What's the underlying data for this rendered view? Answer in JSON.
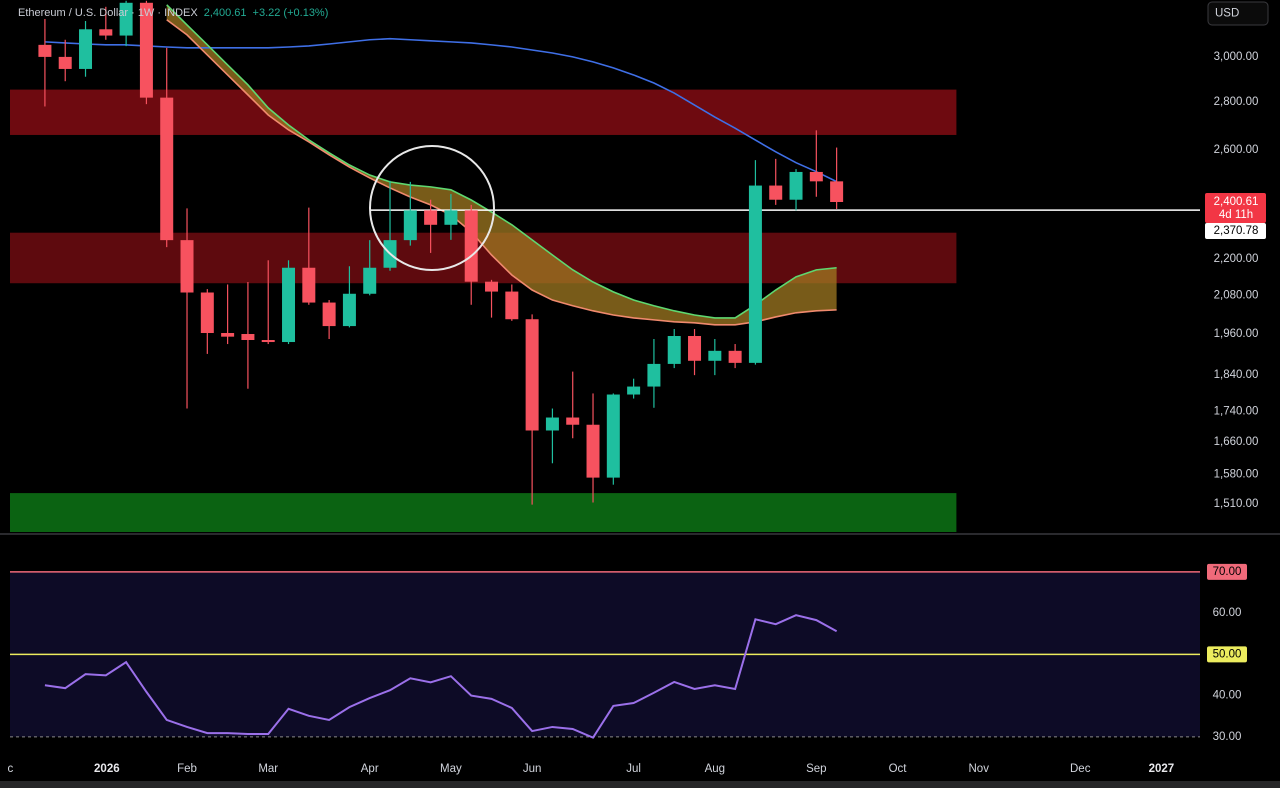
{
  "header": {
    "title": "Ethereum / U.S. Dollar · 1W · INDEX",
    "price": "2,400.61",
    "change": "+3.22 (+0.13%)",
    "currency": "USD"
  },
  "chart_data": [
    {
      "type": "candlestick",
      "log": true,
      "xlim": [
        -1.72,
        56.9
      ],
      "ylim": [
        1446,
        3274
      ],
      "yticks": [
        {
          "value": 3000,
          "label": "3,000.00"
        },
        {
          "value": 2800,
          "label": "2,800.00"
        },
        {
          "value": 2600,
          "label": "2,600.00"
        },
        {
          "value": 2200,
          "label": "2,200.00"
        },
        {
          "value": 2080,
          "label": "2,080.00"
        },
        {
          "value": 1960,
          "label": "1,960.00"
        },
        {
          "value": 1840,
          "label": "1,840.00"
        },
        {
          "value": 1740,
          "label": "1,740.00"
        },
        {
          "value": 1660,
          "label": "1,660.00"
        },
        {
          "value": 1580,
          "label": "1,580.00"
        },
        {
          "value": 1510,
          "label": "1,510.00"
        }
      ],
      "xticks": [
        {
          "value": -1.7,
          "label": "c"
        },
        {
          "value": 3.05,
          "label": "2026"
        },
        {
          "value": 7,
          "label": "Feb"
        },
        {
          "value": 11,
          "label": "Mar"
        },
        {
          "value": 16,
          "label": "Apr"
        },
        {
          "value": 20,
          "label": "May"
        },
        {
          "value": 24,
          "label": "Jun"
        },
        {
          "value": 29,
          "label": "Jul"
        },
        {
          "value": 33,
          "label": "Aug"
        },
        {
          "value": 38,
          "label": "Sep"
        },
        {
          "value": 42,
          "label": "Oct"
        },
        {
          "value": 46,
          "label": "Nov"
        },
        {
          "value": 51,
          "label": "Dec"
        },
        {
          "value": 55,
          "label": "2027"
        }
      ],
      "up_color": "#1fbf9f",
      "down_color": "#f7525f",
      "candles": {
        "open": [
          3056,
          3000,
          2945,
          3130,
          3100,
          3260,
          2818,
          2264,
          2089,
          1963,
          1960,
          1942,
          1936,
          2170,
          2057,
          1984,
          2085,
          2170,
          2264,
          2370,
          2318,
          2370,
          2124,
          2092,
          2005,
          1690,
          1724,
          1705,
          1572,
          1786,
          1808,
          1872,
          1954,
          1881,
          1910,
          1875,
          2462,
          2409,
          2514,
          2478
        ],
        "high": [
          3180,
          3080,
          3170,
          3240,
          3270,
          3270,
          3042,
          2377,
          2100,
          2115,
          2123,
          2195,
          2195,
          2380,
          2065,
          2175,
          2264,
          2480,
          2476,
          2409,
          2430,
          2390,
          2130,
          2115,
          2020,
          1748,
          1850,
          1789,
          1789,
          1830,
          1945,
          1975,
          1975,
          1945,
          1930,
          2560,
          2565,
          2525,
          2680,
          2610
        ],
        "low": [
          2780,
          2890,
          2910,
          3080,
          3050,
          2790,
          2240,
          1748,
          1901,
          1930,
          1802,
          1930,
          1930,
          2050,
          1945,
          1980,
          2080,
          2160,
          2245,
          2220,
          2265,
          2050,
          2010,
          2000,
          1508,
          1607,
          1670,
          1513,
          1555,
          1775,
          1750,
          1860,
          1840,
          1840,
          1860,
          1870,
          2390,
          2370,
          2420,
          2375
        ],
        "close": [
          3000,
          2945,
          3130,
          3100,
          3260,
          2818,
          2264,
          2089,
          1963,
          1952,
          1942,
          1936,
          2170,
          2057,
          1984,
          2085,
          2170,
          2264,
          2370,
          2318,
          2370,
          2124,
          2092,
          2005,
          1690,
          1724,
          1705,
          1572,
          1786,
          1808,
          1872,
          1954,
          1881,
          1910,
          1875,
          2462,
          2409,
          2514,
          2478,
          2400.61
        ]
      },
      "lines": [
        {
          "color": "#3f6fe6",
          "values": [
            3070,
            3065,
            3060,
            3056,
            3056,
            3051,
            3046,
            3042,
            3042,
            3042,
            3042,
            3042,
            3046,
            3051,
            3060,
            3070,
            3080,
            3085,
            3080,
            3075,
            3070,
            3065,
            3056,
            3046,
            3032,
            3018,
            3000,
            2977,
            2950,
            2918,
            2882,
            2838,
            2786,
            2735,
            2689,
            2640,
            2593,
            2550,
            2515,
            2477
          ]
        },
        {
          "color": "#5fd870",
          "values": [
            null,
            null,
            null,
            null,
            null,
            null,
            3250,
            3151,
            3056,
            2963,
            2874,
            2774,
            2702,
            2641,
            2589,
            2541,
            2502,
            2476,
            2464,
            2457,
            2446,
            2408,
            2364,
            2318,
            2265,
            2213,
            2163,
            2123,
            2091,
            2065,
            2047,
            2031,
            2018,
            2009,
            2009,
            2050,
            2097,
            2140,
            2163,
            2170
          ]
        },
        {
          "color": "#f08a6e",
          "values": [
            null,
            null,
            null,
            null,
            null,
            null,
            3176,
            3103,
            3009,
            2918,
            2830,
            2744,
            2682,
            2633,
            2581,
            2533,
            2491,
            2453,
            2419,
            2390,
            2353,
            2293,
            2213,
            2146,
            2097,
            2065,
            2047,
            2031,
            2018,
            2009,
            2003,
            1997,
            1994,
            1988,
            1988,
            1997,
            2012,
            2025,
            2031,
            2034
          ]
        }
      ],
      "ema_band_color": "#a07a22",
      "zones": [
        {
          "from": 2661,
          "to": 2853,
          "color": "#6e0a10"
        },
        {
          "from": 2119,
          "to": 2290,
          "color": "#5e0a0e"
        },
        {
          "from": 1446,
          "to": 1535,
          "color": "#0b6312"
        }
      ],
      "price_line": {
        "value": 2370.78,
        "label": "2,370.78"
      },
      "last_price": {
        "value": 2400.61,
        "label": "2,400.61",
        "countdown": "4d 11h"
      }
    },
    {
      "type": "line",
      "color": "#9b70ea",
      "ylim": [
        25.6,
        78.2
      ],
      "yticks": [
        {
          "value": 70,
          "label": "70.00"
        },
        {
          "value": 60,
          "label": "60.00"
        },
        {
          "value": 50,
          "label": "50.00"
        },
        {
          "value": 40,
          "label": "40.00"
        },
        {
          "value": 30,
          "label": "30.00"
        }
      ],
      "levels": [
        {
          "value": 70,
          "color": "#f06a7a",
          "box": true
        },
        {
          "value": 50,
          "color": "#ecec5e",
          "box": true
        },
        {
          "value": 30,
          "color": "#8a8a8a",
          "dash": true
        }
      ],
      "band_color": "#0d0b26",
      "values": [
        42.5,
        41.8,
        45.2,
        44.9,
        48.1,
        40.9,
        34.1,
        32.4,
        30.9,
        30.9,
        30.7,
        30.7,
        36.8,
        35.1,
        34.1,
        37.2,
        39.4,
        41.3,
        44.2,
        43.2,
        44.7,
        40.0,
        39.2,
        37.0,
        31.4,
        32.4,
        31.9,
        29.8,
        37.5,
        38.2,
        40.7,
        43.3,
        41.6,
        42.5,
        41.6,
        58.5,
        57.3,
        59.5,
        58.3,
        55.6
      ]
    }
  ]
}
